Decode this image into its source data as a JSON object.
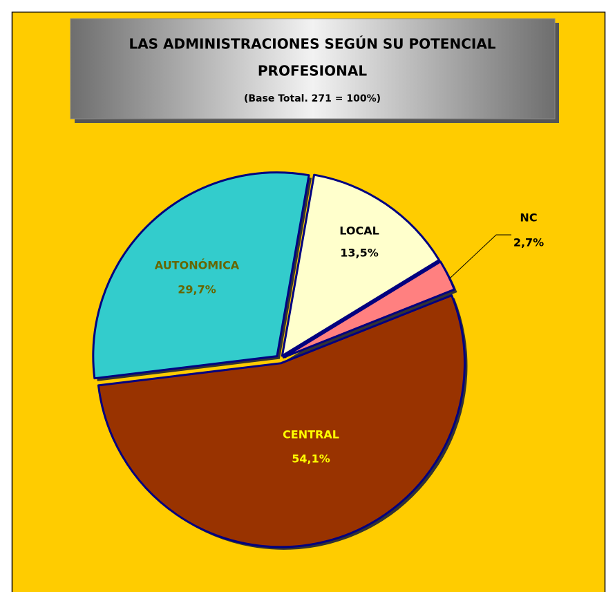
{
  "chart_data": {
    "type": "pie",
    "title": "LAS ADMINISTRACIONES SEGÚN SU POTENCIAL",
    "title_line2": "PROFESIONAL",
    "subtitle": "(Base Total. 271 = 100%)",
    "categories": [
      "LOCAL",
      "NC",
      "CENTRAL",
      "AUTONÓMICA"
    ],
    "values": [
      13.5,
      2.7,
      54.1,
      29.7
    ],
    "value_labels": [
      "13,5%",
      "2,7%",
      "54,1%",
      "29,7%"
    ],
    "colors": [
      "#FFFFCC",
      "#FF8080",
      "#993300",
      "#33CCCC"
    ]
  }
}
